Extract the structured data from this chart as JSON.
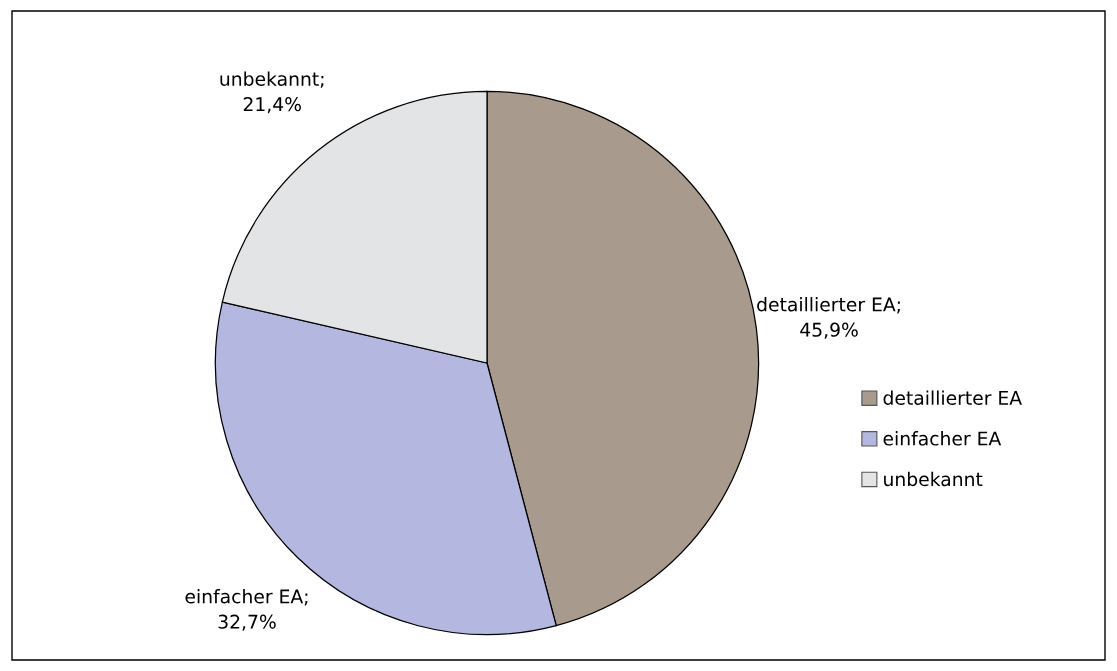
{
  "chart_data": {
    "type": "pie",
    "categories": [
      "detaillierter EA",
      "einfacher EA",
      "unbekannt"
    ],
    "values": [
      45.9,
      32.7,
      21.4
    ],
    "colors": [
      "#a89a8c",
      "#b4b8e0",
      "#e2e4e6"
    ],
    "value_labels": [
      "detaillierter EA;\n45,9%",
      "einfacher EA;\n32,7%",
      "unbekannt;\n21,4%"
    ],
    "legend": "right"
  }
}
